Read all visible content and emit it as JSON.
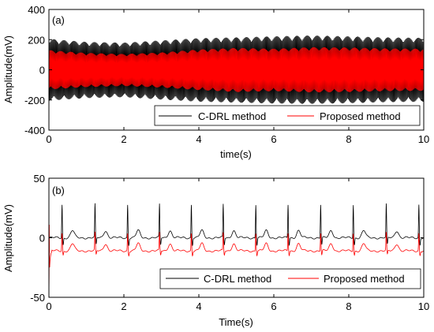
{
  "chart_data": [
    {
      "type": "line",
      "panel_label": "(a)",
      "xlabel": "time(s)",
      "ylabel": "Amplitude(mV)",
      "xlim": [
        0,
        10
      ],
      "ylim": [
        -400,
        400
      ],
      "xticks": [
        0,
        2,
        4,
        6,
        8,
        10
      ],
      "yticks": [
        -400,
        -200,
        0,
        200,
        400
      ],
      "legend_position": "lower-right",
      "series": [
        {
          "name": "C-DRL method",
          "color": "#000000",
          "envelope": {
            "x": [
              0,
              1,
              2,
              3,
              4,
              5,
              6,
              7,
              8,
              9,
              10
            ],
            "upper": [
              205,
              185,
              180,
              195,
              210,
              215,
              222,
              228,
              222,
              215,
              212
            ],
            "lower": [
              -205,
              -188,
              -182,
              -198,
              -212,
              -218,
              -224,
              -226,
              -222,
              -215,
              -212
            ]
          }
        },
        {
          "name": "Proposed method",
          "color": "#ff0000",
          "envelope": {
            "x": [
              0,
              1,
              2,
              3,
              4,
              5,
              6,
              7,
              8,
              9,
              10
            ],
            "upper": [
              130,
              112,
              105,
              115,
              135,
              145,
              140,
              150,
              148,
              142,
              140
            ],
            "lower": [
              -130,
              -115,
              -108,
              -118,
              -135,
              -148,
              -142,
              -150,
              -148,
              -142,
              -140
            ]
          }
        }
      ]
    },
    {
      "type": "line",
      "panel_label": "(b)",
      "xlabel": "Time(s)",
      "ylabel": "Amplitude(mV)",
      "xlim": [
        0,
        10
      ],
      "ylim": [
        -50,
        50
      ],
      "xticks": [
        0,
        2,
        4,
        6,
        8,
        10
      ],
      "yticks": [
        -50,
        0,
        50
      ],
      "legend_position": "lower-right",
      "beat_times": [
        0.35,
        1.23,
        2.1,
        2.95,
        3.8,
        4.65,
        5.52,
        6.38,
        7.25,
        8.12,
        9.0,
        9.87
      ],
      "series": [
        {
          "name": "C-DRL method",
          "color": "#000000",
          "baseline": 0,
          "r_peak": 28,
          "s_trough": -12,
          "t_wave": 6
        },
        {
          "name": "Proposed method",
          "color": "#ff0000",
          "baseline": -11,
          "r_peak": 4,
          "s_trough": -18,
          "t_wave": -5
        }
      ]
    }
  ]
}
